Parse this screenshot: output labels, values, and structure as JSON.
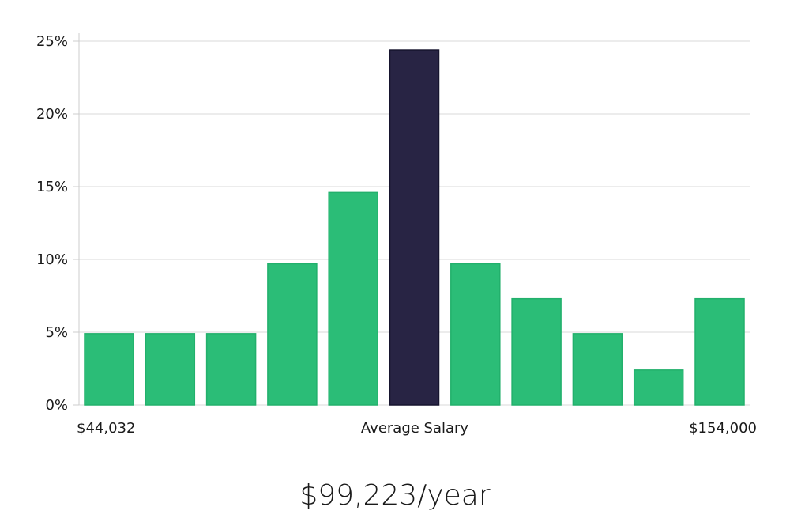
{
  "chart_data": {
    "type": "bar",
    "title": "",
    "xlabel": "",
    "ylabel": "",
    "ylim": [
      0,
      25
    ],
    "y_ticks": [
      0,
      5,
      10,
      15,
      20,
      25
    ],
    "y_tick_labels": [
      "0%",
      "5%",
      "10%",
      "15%",
      "20%",
      "25%"
    ],
    "grid": true,
    "values": [
      4.9,
      4.9,
      4.9,
      9.7,
      14.6,
      24.4,
      9.7,
      7.3,
      4.9,
      2.4,
      7.3
    ],
    "highlight_index": 5,
    "x_labels": {
      "min": "$44,032",
      "center": "Average Salary",
      "max": "$154,000"
    },
    "colors": {
      "bar": "#2bbd77",
      "bar_stroke": "#22b06c",
      "highlight": "#282444",
      "highlight_stroke": "#16142e",
      "grid": "#d9d9d9",
      "axis": "#cccccc"
    }
  },
  "summary": {
    "salary": "$99,223/year"
  }
}
